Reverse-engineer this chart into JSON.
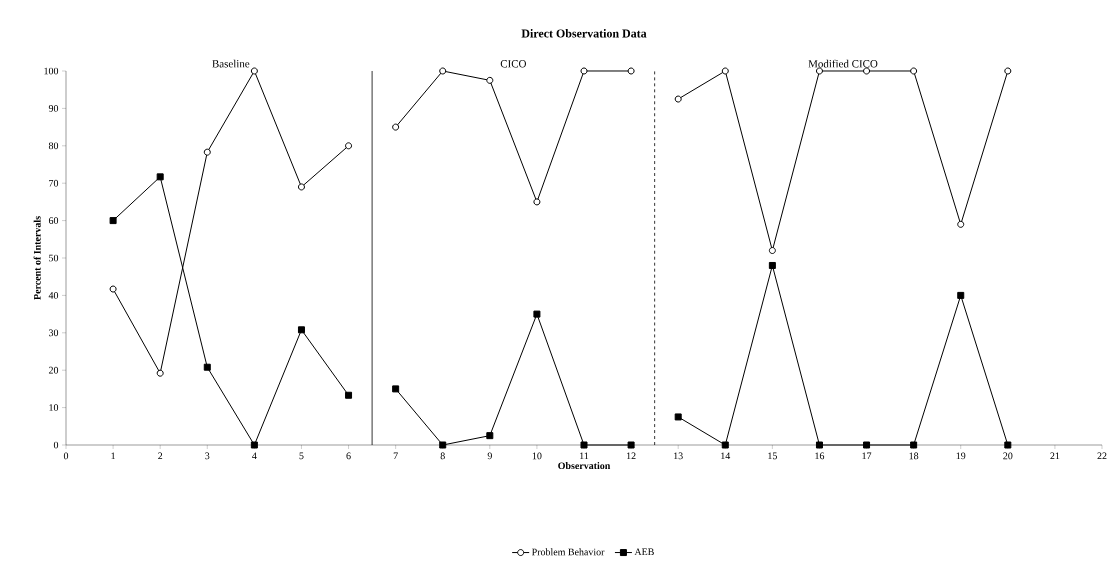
{
  "chart_data": {
    "type": "line",
    "title": "Direct Observation Data",
    "xlabel": "Observation",
    "ylabel": "Percent of Intervals",
    "x": [
      1,
      2,
      3,
      4,
      5,
      6,
      7,
      8,
      9,
      10,
      11,
      12,
      13,
      14,
      15,
      16,
      17,
      18,
      19,
      20
    ],
    "series": [
      {
        "name": "Problem Behavior",
        "color": "#000000",
        "marker": "circle",
        "values": [
          41.7,
          19.2,
          78.3,
          100,
          69,
          80,
          85,
          100,
          97.5,
          65,
          100,
          100,
          92.5,
          100,
          52,
          100,
          100,
          100,
          59,
          100
        ]
      },
      {
        "name": "AEB",
        "color": "#000000",
        "marker": "square",
        "values": [
          60,
          71.7,
          20.8,
          0,
          30.8,
          13.3,
          15,
          0,
          2.5,
          35,
          0,
          0,
          7.5,
          0,
          48,
          0,
          0,
          0,
          40,
          0
        ]
      }
    ],
    "ref_lines": [
      {
        "axis": "x",
        "value": 6.5,
        "color": "#000000",
        "line_style": "solid"
      },
      {
        "axis": "x",
        "value": 12.5,
        "color": "#000000",
        "line_style": "dashed"
      }
    ],
    "annotations": [
      "Baseline",
      "CICO",
      "Modified CICO"
    ],
    "xlim": [
      0,
      22
    ],
    "xticks": [
      0,
      1,
      2,
      3,
      4,
      5,
      6,
      7,
      8,
      9,
      10,
      11,
      12,
      13,
      14,
      15,
      16,
      17,
      18,
      19,
      20,
      21,
      22
    ],
    "ylim": [
      0,
      100
    ],
    "yticks": [
      0,
      10,
      20,
      30,
      40,
      50,
      60,
      70,
      80,
      90,
      100
    ],
    "grid": false,
    "legend": "bottom",
    "line_style": "solid"
  }
}
